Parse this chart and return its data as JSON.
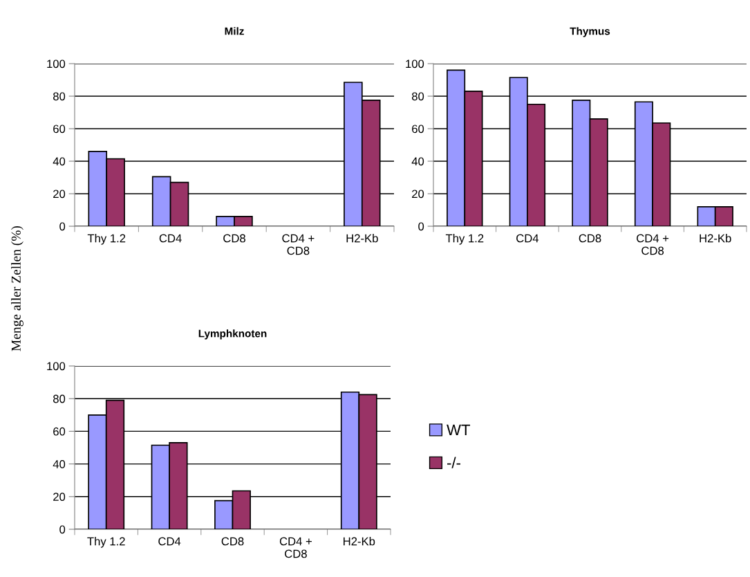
{
  "chart_data": [
    {
      "type": "bar",
      "title": "Milz",
      "ylabel": "Menge aller Zellen (%)",
      "categories": [
        "Thy 1.2",
        "CD4",
        "CD8",
        "CD4 +\nCD8",
        "H2-Kb"
      ],
      "series": [
        {
          "color": "#9999ff",
          "values": [
            46,
            30.5,
            6,
            null,
            88.5
          ]
        },
        {
          "color": "#993366",
          "values": [
            41.5,
            27,
            6,
            null,
            77.5
          ]
        }
      ],
      "ylim": [
        0,
        100
      ],
      "yticks": [
        0,
        20,
        40,
        60,
        80,
        100
      ],
      "grid": "y"
    },
    {
      "type": "bar",
      "title": "Thymus",
      "categories": [
        "Thy 1.2",
        "CD4",
        "CD8",
        "CD4 +\nCD8",
        "H2-Kb"
      ],
      "series": [
        {
          "color": "#9999ff",
          "values": [
            96,
            91.5,
            77.5,
            76.5,
            12
          ]
        },
        {
          "color": "#993366",
          "values": [
            83,
            75,
            66,
            63.5,
            12
          ]
        }
      ],
      "ylim": [
        0,
        100
      ],
      "yticks": [
        0,
        20,
        40,
        60,
        80,
        100
      ],
      "grid": "y"
    },
    {
      "type": "bar",
      "title": "Lymphknoten",
      "categories": [
        "Thy 1.2",
        "CD4",
        "CD8",
        "CD4 +\nCD8",
        "H2-Kb"
      ],
      "series": [
        {
          "name": "WT",
          "color": "#9999ff",
          "values": [
            70,
            51.5,
            17.5,
            null,
            84
          ]
        },
        {
          "name": "-/-",
          "color": "#993366",
          "values": [
            79,
            53,
            23.5,
            null,
            82.5
          ]
        }
      ],
      "ylim": [
        0,
        100
      ],
      "yticks": [
        0,
        20,
        40,
        60,
        80,
        100
      ],
      "grid": "y",
      "legend": "right"
    }
  ]
}
